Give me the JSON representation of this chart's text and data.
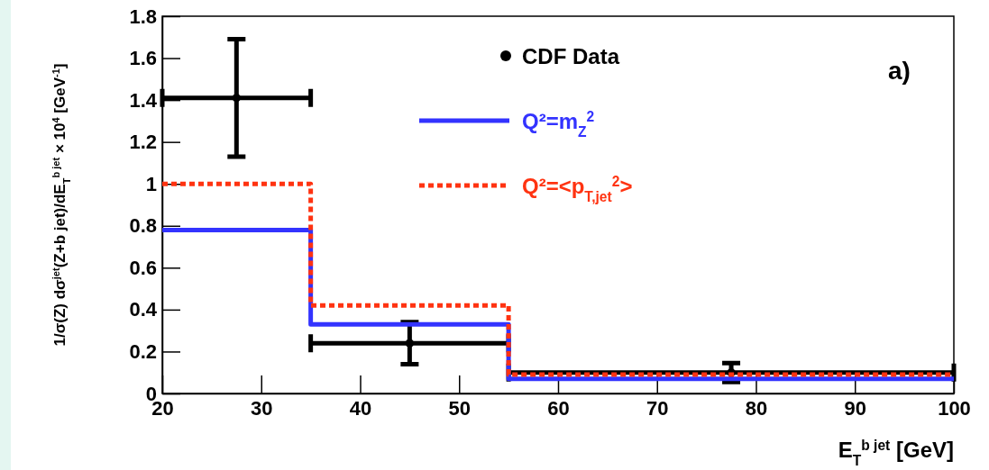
{
  "chart_data": {
    "type": "step",
    "xlabel": "E$_{T}$$^{b jet}$ [GeV]",
    "ylabel": "1/σ(Z) dσ$^{jet}$(Z+b jet)/dE$_{T}$$^{b jet}$ × 10$^{4}$ [GeV$^{-1}$]",
    "annotations": [
      "a)"
    ],
    "xlim": [
      20,
      100
    ],
    "xticks": [
      20,
      30,
      40,
      50,
      60,
      70,
      80,
      90,
      100
    ],
    "ylim": [
      0,
      1.8
    ],
    "yticks": [
      0,
      0.2,
      0.4,
      0.6,
      0.8,
      1,
      1.2,
      1.4,
      1.6,
      1.8
    ],
    "legend": "top",
    "grid": false,
    "series": [
      {
        "name": "CDF Data",
        "type": "scatter",
        "color": "#000000",
        "marker": "circle",
        "x": [
          27.5,
          45,
          77.5
        ],
        "values": [
          1.41,
          0.24,
          0.1
        ],
        "errors": [
          0.28,
          0.1,
          0.045
        ],
        "xerrors": [
          7.5,
          10,
          22.5
        ]
      },
      {
        "name": "Q²=m$_{Z}$$^{2}$",
        "color": "#3333ff",
        "line_style": "solid",
        "x": [
          20,
          35,
          55,
          100
        ],
        "values": [
          0.78,
          0.33,
          0.07,
          0.07
        ]
      },
      {
        "name": "Q²=<p$_{T,jet}$$^{2}$>",
        "color": "#ff3311",
        "line_style": "dotted",
        "x": [
          20,
          35,
          55,
          100
        ],
        "values": [
          1.0,
          0.42,
          0.09,
          0.09
        ]
      }
    ]
  }
}
